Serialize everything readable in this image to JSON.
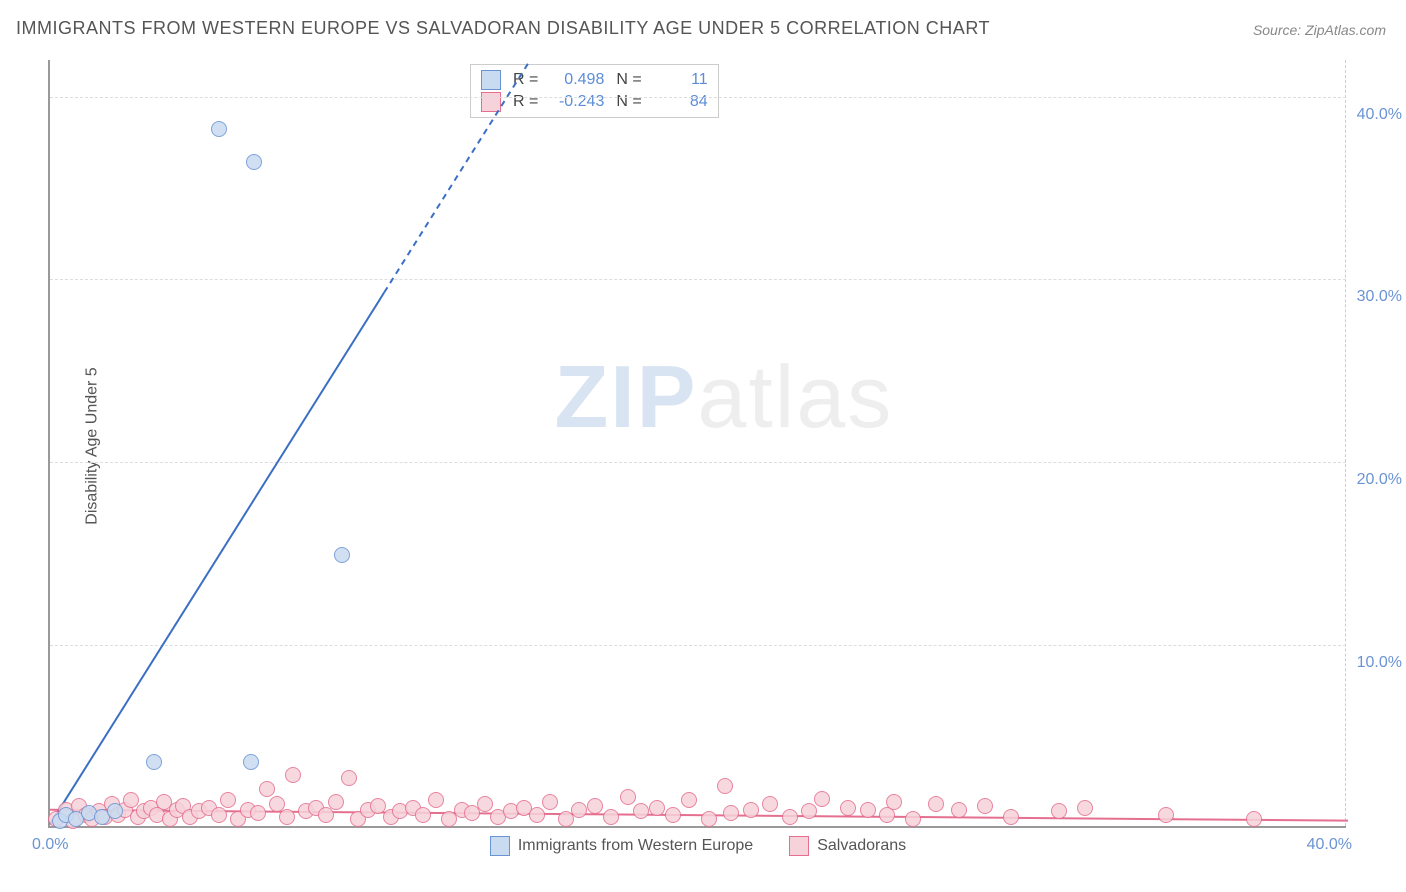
{
  "title": "IMMIGRANTS FROM WESTERN EUROPE VS SALVADORAN DISABILITY AGE UNDER 5 CORRELATION CHART",
  "source": "Source: ZipAtlas.com",
  "y_axis_label": "Disability Age Under 5",
  "watermark": {
    "part1": "ZIP",
    "part2": "atlas"
  },
  "chart": {
    "type": "scatter",
    "background_color": "#ffffff",
    "grid_color": "#dddddd",
    "axis_color": "#999999",
    "xlim": [
      0,
      40
    ],
    "ylim": [
      0,
      42
    ],
    "x_ticks": [
      {
        "v": 0,
        "label": "0.0%"
      },
      {
        "v": 40,
        "label": "40.0%"
      }
    ],
    "y_ticks": [
      {
        "v": 10,
        "label": "10.0%"
      },
      {
        "v": 20,
        "label": "20.0%"
      },
      {
        "v": 30,
        "label": "30.0%"
      },
      {
        "v": 40,
        "label": "40.0%"
      }
    ],
    "series": {
      "blue": {
        "label": "Immigrants from Western Europe",
        "fill": "#c8dbf0",
        "stroke": "#6a93d4",
        "marker_radius": 8,
        "stroke_width": 1.5,
        "trend": {
          "color": "#3b6fc4",
          "width": 2,
          "x1": 0,
          "y1": 0.2,
          "x2": 14.8,
          "y2": 42,
          "dash_from_x": 10.3
        },
        "stats": {
          "R": "0.498",
          "N": "11"
        },
        "points": [
          {
            "x": 0.3,
            "y": 0.3
          },
          {
            "x": 0.5,
            "y": 0.6
          },
          {
            "x": 0.8,
            "y": 0.4
          },
          {
            "x": 1.2,
            "y": 0.7
          },
          {
            "x": 1.6,
            "y": 0.5
          },
          {
            "x": 2.0,
            "y": 0.8
          },
          {
            "x": 3.2,
            "y": 3.5
          },
          {
            "x": 5.2,
            "y": 38.1
          },
          {
            "x": 6.2,
            "y": 3.5
          },
          {
            "x": 6.3,
            "y": 36.3
          },
          {
            "x": 9.0,
            "y": 14.8
          }
        ]
      },
      "pink": {
        "label": "Salvadorans",
        "fill": "#f6d2da",
        "stroke": "#e56f8f",
        "marker_radius": 8,
        "stroke_width": 1.5,
        "trend": {
          "color": "#e56f8f",
          "width": 2,
          "x1": 0,
          "y1": 1.0,
          "x2": 40,
          "y2": 0.4
        },
        "stats": {
          "R": "-0.243",
          "N": "84"
        },
        "points": [
          {
            "x": 0.2,
            "y": 0.4
          },
          {
            "x": 0.5,
            "y": 0.9
          },
          {
            "x": 0.7,
            "y": 0.3
          },
          {
            "x": 0.9,
            "y": 1.1
          },
          {
            "x": 1.1,
            "y": 0.6
          },
          {
            "x": 1.3,
            "y": 0.4
          },
          {
            "x": 1.5,
            "y": 0.8
          },
          {
            "x": 1.7,
            "y": 0.5
          },
          {
            "x": 1.9,
            "y": 1.2
          },
          {
            "x": 2.1,
            "y": 0.6
          },
          {
            "x": 2.3,
            "y": 0.9
          },
          {
            "x": 2.5,
            "y": 1.4
          },
          {
            "x": 2.7,
            "y": 0.5
          },
          {
            "x": 2.9,
            "y": 0.8
          },
          {
            "x": 3.1,
            "y": 1.0
          },
          {
            "x": 3.3,
            "y": 0.6
          },
          {
            "x": 3.5,
            "y": 1.3
          },
          {
            "x": 3.7,
            "y": 0.4
          },
          {
            "x": 3.9,
            "y": 0.9
          },
          {
            "x": 4.1,
            "y": 1.1
          },
          {
            "x": 4.3,
            "y": 0.5
          },
          {
            "x": 4.6,
            "y": 0.8
          },
          {
            "x": 4.9,
            "y": 1.0
          },
          {
            "x": 5.2,
            "y": 0.6
          },
          {
            "x": 5.5,
            "y": 1.4
          },
          {
            "x": 5.8,
            "y": 0.4
          },
          {
            "x": 6.1,
            "y": 0.9
          },
          {
            "x": 6.4,
            "y": 0.7
          },
          {
            "x": 6.7,
            "y": 2.0
          },
          {
            "x": 7.0,
            "y": 1.2
          },
          {
            "x": 7.3,
            "y": 0.5
          },
          {
            "x": 7.5,
            "y": 2.8
          },
          {
            "x": 7.9,
            "y": 0.8
          },
          {
            "x": 8.2,
            "y": 1.0
          },
          {
            "x": 8.5,
            "y": 0.6
          },
          {
            "x": 8.8,
            "y": 1.3
          },
          {
            "x": 9.2,
            "y": 2.6
          },
          {
            "x": 9.5,
            "y": 0.4
          },
          {
            "x": 9.8,
            "y": 0.9
          },
          {
            "x": 10.1,
            "y": 1.1
          },
          {
            "x": 10.5,
            "y": 0.5
          },
          {
            "x": 10.8,
            "y": 0.8
          },
          {
            "x": 11.2,
            "y": 1.0
          },
          {
            "x": 11.5,
            "y": 0.6
          },
          {
            "x": 11.9,
            "y": 1.4
          },
          {
            "x": 12.3,
            "y": 0.4
          },
          {
            "x": 12.7,
            "y": 0.9
          },
          {
            "x": 13.0,
            "y": 0.7
          },
          {
            "x": 13.4,
            "y": 1.2
          },
          {
            "x": 13.8,
            "y": 0.5
          },
          {
            "x": 14.2,
            "y": 0.8
          },
          {
            "x": 14.6,
            "y": 1.0
          },
          {
            "x": 15.0,
            "y": 0.6
          },
          {
            "x": 15.4,
            "y": 1.3
          },
          {
            "x": 15.9,
            "y": 0.4
          },
          {
            "x": 16.3,
            "y": 0.9
          },
          {
            "x": 16.8,
            "y": 1.1
          },
          {
            "x": 17.3,
            "y": 0.5
          },
          {
            "x": 17.8,
            "y": 1.6
          },
          {
            "x": 18.2,
            "y": 0.8
          },
          {
            "x": 18.7,
            "y": 1.0
          },
          {
            "x": 19.2,
            "y": 0.6
          },
          {
            "x": 19.7,
            "y": 1.4
          },
          {
            "x": 20.3,
            "y": 0.4
          },
          {
            "x": 20.8,
            "y": 2.2
          },
          {
            "x": 21.0,
            "y": 0.7
          },
          {
            "x": 21.6,
            "y": 0.9
          },
          {
            "x": 22.2,
            "y": 1.2
          },
          {
            "x": 22.8,
            "y": 0.5
          },
          {
            "x": 23.4,
            "y": 0.8
          },
          {
            "x": 23.8,
            "y": 1.5
          },
          {
            "x": 24.6,
            "y": 1.0
          },
          {
            "x": 25.2,
            "y": 0.9
          },
          {
            "x": 25.8,
            "y": 0.6
          },
          {
            "x": 26.0,
            "y": 1.3
          },
          {
            "x": 26.6,
            "y": 0.4
          },
          {
            "x": 27.3,
            "y": 1.2
          },
          {
            "x": 28.0,
            "y": 0.9
          },
          {
            "x": 28.8,
            "y": 1.1
          },
          {
            "x": 29.6,
            "y": 0.5
          },
          {
            "x": 31.1,
            "y": 0.8
          },
          {
            "x": 31.9,
            "y": 1.0
          },
          {
            "x": 34.4,
            "y": 0.6
          },
          {
            "x": 37.1,
            "y": 0.4
          }
        ]
      }
    }
  },
  "stats_labels": {
    "R": "R  =",
    "N": "N  ="
  }
}
